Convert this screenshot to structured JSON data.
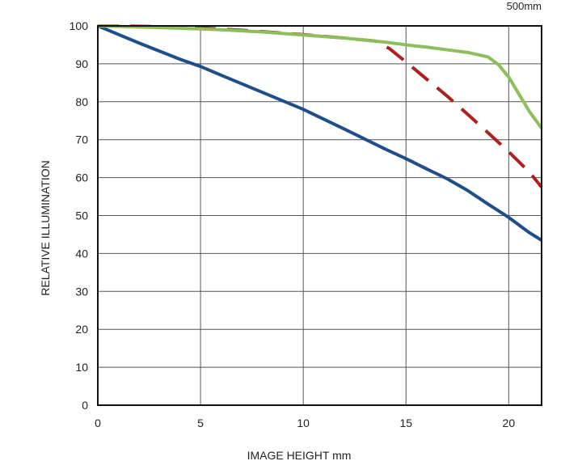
{
  "chart_data": {
    "type": "line",
    "title": "",
    "corner_label": "500mm",
    "xlabel": "IMAGE HEIGHT   mm",
    "ylabel": "RELATIVE ILLUMINATION",
    "xlim": [
      0,
      21.6
    ],
    "ylim": [
      0,
      100
    ],
    "xticks": [
      0,
      5,
      10,
      15,
      20
    ],
    "yticks": [
      0,
      10,
      20,
      30,
      40,
      50,
      60,
      70,
      80,
      90,
      100
    ],
    "grid": true,
    "series": [
      {
        "color": "#1f4e8c",
        "dash": "solid",
        "points": [
          [
            0,
            100
          ],
          [
            2,
            95.5
          ],
          [
            4,
            91.2
          ],
          [
            5,
            89.3
          ],
          [
            6,
            87
          ],
          [
            8,
            82.5
          ],
          [
            10,
            78
          ],
          [
            12,
            72.8
          ],
          [
            14,
            67.5
          ],
          [
            15,
            65
          ],
          [
            16,
            62.3
          ],
          [
            17,
            59.7
          ],
          [
            18,
            56.6
          ],
          [
            19,
            53
          ],
          [
            20,
            49.5
          ],
          [
            21,
            45.5
          ],
          [
            21.6,
            43.5
          ]
        ]
      },
      {
        "color": "#b01e1e",
        "dash": "dashed",
        "points": [
          [
            0,
            100
          ],
          [
            2,
            99.9
          ],
          [
            4,
            99.7
          ],
          [
            6,
            99.2
          ],
          [
            8,
            98.5
          ],
          [
            10,
            97.7
          ],
          [
            12,
            96.8
          ],
          [
            13.5,
            96
          ],
          [
            14.2,
            94
          ],
          [
            15,
            90.5
          ],
          [
            16,
            86
          ],
          [
            17,
            81.5
          ],
          [
            18,
            76.7
          ],
          [
            19,
            71.8
          ],
          [
            20,
            66.8
          ],
          [
            21,
            61.5
          ],
          [
            21.6,
            57.5
          ]
        ]
      },
      {
        "color": "#8cbf5a",
        "dash": "solid",
        "points": [
          [
            0,
            100
          ],
          [
            2,
            99.7
          ],
          [
            4,
            99.4
          ],
          [
            6,
            99
          ],
          [
            8,
            98.4
          ],
          [
            10,
            97.6
          ],
          [
            12,
            96.8
          ],
          [
            14,
            95.7
          ],
          [
            15,
            95
          ],
          [
            16,
            94.4
          ],
          [
            17,
            93.7
          ],
          [
            18,
            93
          ],
          [
            19,
            91.8
          ],
          [
            19.5,
            89.8
          ],
          [
            20,
            86.5
          ],
          [
            20.5,
            82
          ],
          [
            21,
            77.5
          ],
          [
            21.6,
            73
          ]
        ]
      }
    ]
  }
}
